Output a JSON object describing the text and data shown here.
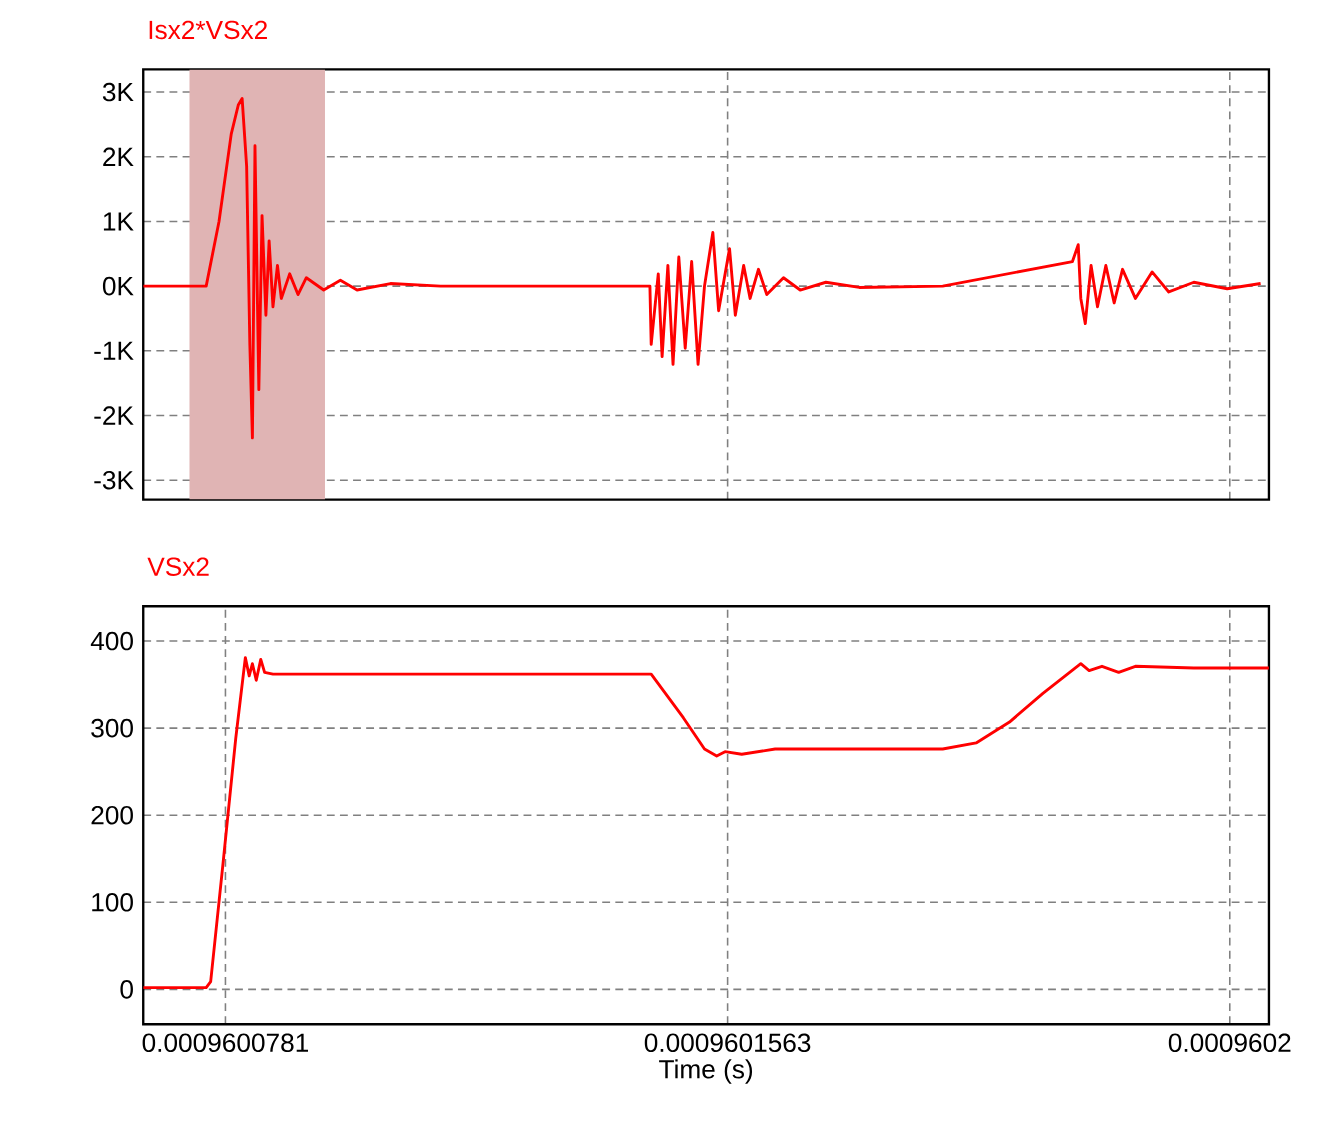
{
  "chart_data": [
    {
      "type": "line",
      "title": "Isx2*VSx2",
      "xlim": [
        0.0009600653,
        0.0009602406
      ],
      "ylim": [
        -3300,
        3350
      ],
      "xticks": [
        {
          "value": 0.0009600781,
          "label": null
        },
        {
          "value": 0.0009601563,
          "label": null
        },
        {
          "value": 0.0009602345,
          "label": null
        }
      ],
      "yticks": [
        {
          "value": 3000,
          "label": "3K"
        },
        {
          "value": 2000,
          "label": "2K"
        },
        {
          "value": 1000,
          "label": "1K"
        },
        {
          "value": 0,
          "label": "0K"
        },
        {
          "value": -1000,
          "label": "-1K"
        },
        {
          "value": -2000,
          "label": "-2K"
        },
        {
          "value": -3000,
          "label": "-3K"
        }
      ],
      "tick_labels": "y",
      "grid": true,
      "bands": [
        {
          "axis": "x",
          "from": 0.0009600725,
          "to": 0.0009600936,
          "color": "#e0b4b4"
        }
      ],
      "series": [
        {
          "color": "#ff0000",
          "x": [
            0.0009600653,
            0.0009600751,
            0.0009600771,
            0.000960079,
            0.0009600801,
            0.0009600807,
            0.0009600814,
            0.0009600819,
            0.0009600823,
            0.0009600827,
            0.0009600833,
            0.0009600838,
            0.0009600844,
            0.0009600849,
            0.0009600855,
            0.0009600862,
            0.0009600868,
            0.0009600881,
            0.0009600894,
            0.0009600907,
            0.0009600934,
            0.000960096,
            0.0009600986,
            0.0009601038,
            0.0009601116,
            0.0009601442,
            0.0009601444,
            0.0009601455,
            0.0009601461,
            0.000960147,
            0.0009601478,
            0.0009601487,
            0.0009601497,
            0.0009601507,
            0.0009601517,
            0.0009601527,
            0.000960154,
            0.0009601549,
            0.0009601566,
            0.0009601575,
            0.0009601588,
            0.0009601598,
            0.0009601611,
            0.0009601624,
            0.000960165,
            0.0009601676,
            0.0009601716,
            0.0009601768,
            0.0009601898,
            0.00096021,
            0.0009602109,
            0.0009602113,
            0.000960212,
            0.0009602129,
            0.0009602139,
            0.0009602152,
            0.0009602165,
            0.0009602178,
            0.0009602198,
            0.0009602224,
            0.000960225,
            0.0009602289,
            0.0009602341,
            0.0009602393
          ],
          "values": [
            0,
            0,
            1000,
            2350,
            2800,
            2900,
            1850,
            -900,
            -2350,
            2170,
            -1600,
            1090,
            -450,
            700,
            -320,
            320,
            -190,
            190,
            -130,
            130,
            -60,
            90,
            -60,
            40,
            0,
            0,
            -900,
            190,
            -1090,
            320,
            -1210,
            450,
            -960,
            380,
            -1210,
            0,
            830,
            -380,
            580,
            -450,
            320,
            -190,
            260,
            -130,
            130,
            -60,
            60,
            -20,
            0,
            380,
            640,
            -190,
            -580,
            320,
            -320,
            320,
            -260,
            260,
            -190,
            220,
            -90,
            60,
            -40,
            40
          ]
        }
      ]
    },
    {
      "type": "line",
      "title": "VSx2",
      "xlabel": "Time (s)",
      "xlim": [
        0.0009600653,
        0.0009602406
      ],
      "ylim": [
        -40,
        440
      ],
      "xticks": [
        {
          "value": 0.0009600781,
          "label": "0.0009600781"
        },
        {
          "value": 0.0009601563,
          "label": "0.0009601563"
        },
        {
          "value": 0.0009602345,
          "label": "0.0009602"
        }
      ],
      "yticks": [
        0,
        100,
        200,
        300,
        400
      ],
      "grid": true,
      "series": [
        {
          "color": "#ff0000",
          "x": [
            0.0009600653,
            0.0009600751,
            0.0009600758,
            0.0009600777,
            0.0009600797,
            0.0009600807,
            0.0009600812,
            0.0009600818,
            0.0009600823,
            0.0009600829,
            0.0009600836,
            0.0009600842,
            0.0009600855,
            0.0009601444,
            0.0009601494,
            0.0009601527,
            0.0009601546,
            0.0009601559,
            0.0009601585,
            0.0009601637,
            0.0009601768,
            0.0009601898,
            0.000960195,
            0.0009602002,
            0.0009602054,
            0.0009602113,
            0.0009602126,
            0.0009602146,
            0.0009602172,
            0.0009602198,
            0.0009602289,
            0.0009602406
          ],
          "values": [
            2,
            2,
            9,
            143,
            288,
            350,
            381,
            360,
            374,
            355,
            379,
            364,
            362,
            362,
            312,
            276,
            268,
            273,
            270,
            276,
            276,
            276,
            283,
            307,
            340,
            374,
            366,
            371,
            364,
            371,
            369,
            369
          ]
        }
      ]
    }
  ]
}
